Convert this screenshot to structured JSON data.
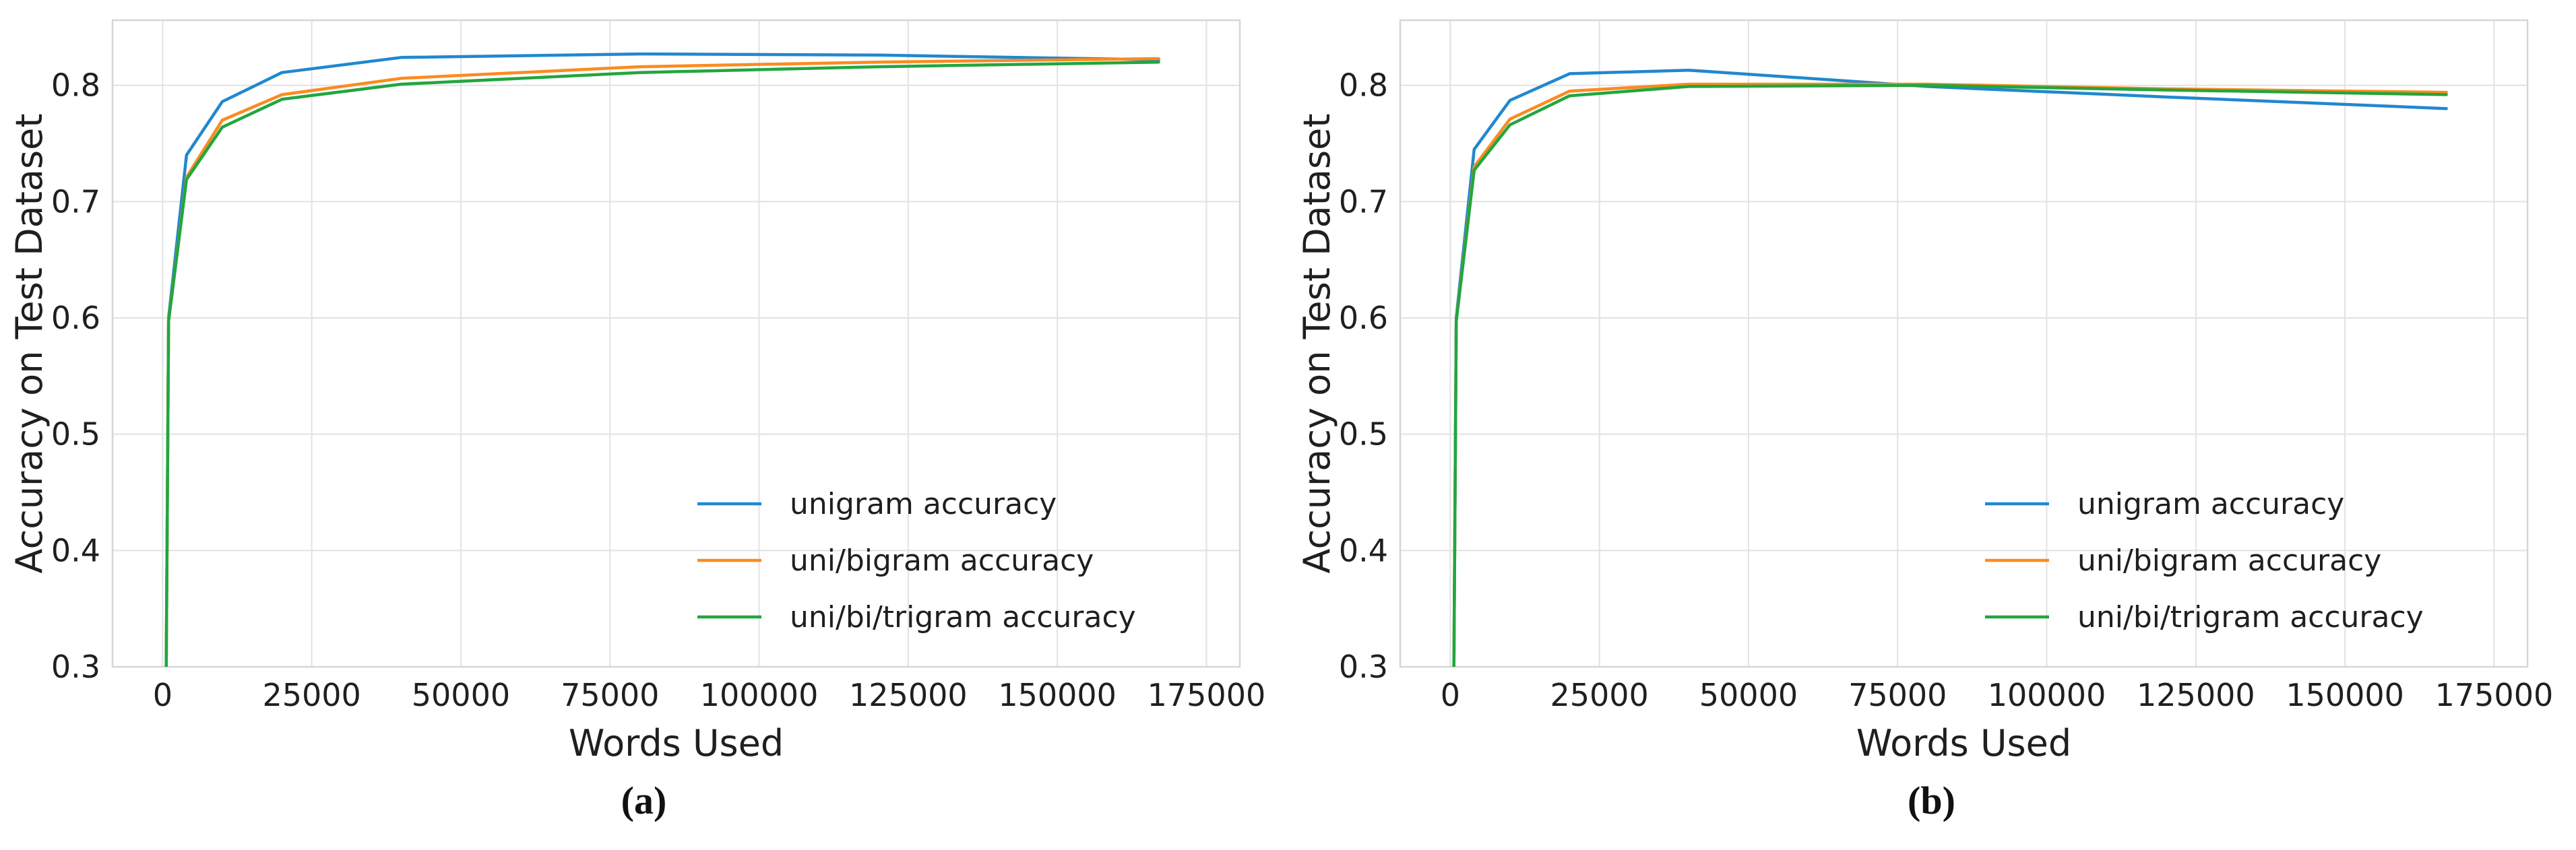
{
  "figure": {
    "description": "Two line charts comparing n-gram model accuracy on a test dataset versus number of words used",
    "text_color": "#1f1f1f",
    "grid_color": "#e2e2e2",
    "frame_color": "#d6d6d6",
    "background": "#ffffff"
  },
  "chart_data": [
    {
      "type": "line",
      "panel_label": "(a)",
      "title": "",
      "xlabel": "Words Used",
      "ylabel": "Accuracy on Test Dataset",
      "xlim": [
        -8400,
        180600
      ],
      "ylim": [
        0.3,
        0.856
      ],
      "xticks": [
        0,
        25000,
        50000,
        75000,
        100000,
        125000,
        150000,
        175000
      ],
      "yticks": [
        0.3,
        0.4,
        0.5,
        0.6,
        0.7,
        0.8
      ],
      "grid": true,
      "legend_position": "lower right",
      "x": [
        600,
        1000,
        4000,
        10000,
        20000,
        40000,
        80000,
        120000,
        167000
      ],
      "series": [
        {
          "name": "unigram accuracy",
          "color": "#2088cf",
          "values": [
            0.3,
            0.6,
            0.74,
            0.786,
            0.811,
            0.824,
            0.827,
            0.826,
            0.822
          ]
        },
        {
          "name": "uni/bigram accuracy",
          "color": "#fb8b1e",
          "values": [
            0.3,
            0.598,
            0.721,
            0.77,
            0.792,
            0.806,
            0.816,
            0.82,
            0.823
          ]
        },
        {
          "name": "uni/bi/trigram accuracy",
          "color": "#22a63e",
          "values": [
            0.3,
            0.597,
            0.719,
            0.764,
            0.788,
            0.801,
            0.811,
            0.816,
            0.82
          ]
        }
      ]
    },
    {
      "type": "line",
      "panel_label": "(b)",
      "title": "",
      "xlabel": "Words Used",
      "ylabel": "Accuracy on Test Dataset",
      "xlim": [
        -8400,
        180600
      ],
      "ylim": [
        0.3,
        0.856
      ],
      "xticks": [
        0,
        25000,
        50000,
        75000,
        100000,
        125000,
        150000,
        175000
      ],
      "yticks": [
        0.3,
        0.4,
        0.5,
        0.6,
        0.7,
        0.8
      ],
      "grid": true,
      "legend_position": "lower right",
      "x": [
        600,
        1000,
        4000,
        10000,
        20000,
        40000,
        80000,
        120000,
        167000
      ],
      "series": [
        {
          "name": "unigram accuracy",
          "color": "#2088cf",
          "values": [
            0.3,
            0.6,
            0.745,
            0.787,
            0.81,
            0.813,
            0.799,
            0.79,
            0.78
          ]
        },
        {
          "name": "uni/bigram accuracy",
          "color": "#fb8b1e",
          "values": [
            0.3,
            0.598,
            0.73,
            0.771,
            0.795,
            0.801,
            0.801,
            0.797,
            0.794
          ]
        },
        {
          "name": "uni/bi/trigram accuracy",
          "color": "#22a63e",
          "values": [
            0.3,
            0.597,
            0.727,
            0.766,
            0.791,
            0.799,
            0.8,
            0.796,
            0.792
          ]
        }
      ]
    }
  ]
}
